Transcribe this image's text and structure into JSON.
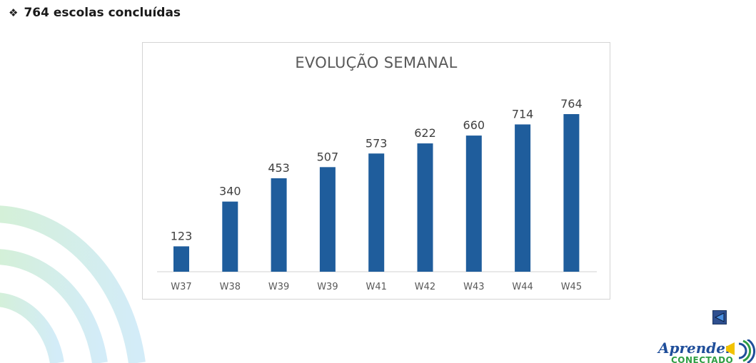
{
  "headline": {
    "icon": "diamond-bullet-icon",
    "text": "764 escolas concluídas"
  },
  "chart_data": {
    "type": "bar",
    "title": "EVOLUÇÃO SEMANAL",
    "categories": [
      "W37",
      "W38",
      "W39",
      "W39",
      "W41",
      "W42",
      "W43",
      "W44",
      "W45"
    ],
    "values": [
      123,
      340,
      453,
      507,
      573,
      622,
      660,
      714,
      764
    ],
    "xlabel": "",
    "ylabel": "",
    "ylim": [
      0,
      764
    ],
    "grid": false,
    "legend": "none",
    "data_labels": true,
    "bar_color": "#1f5d9c"
  },
  "navigation": {
    "back_icon": "back-arrow-icon"
  },
  "logo": {
    "line1": "Aprender",
    "line2": "CONECTADO"
  },
  "colors": {
    "arc_green": "#cfeed3",
    "arc_blue": "#cfe9f7",
    "logo_blue": "#1f4e9a",
    "logo_green": "#2f9e44",
    "logo_yellow": "#f2c200"
  }
}
